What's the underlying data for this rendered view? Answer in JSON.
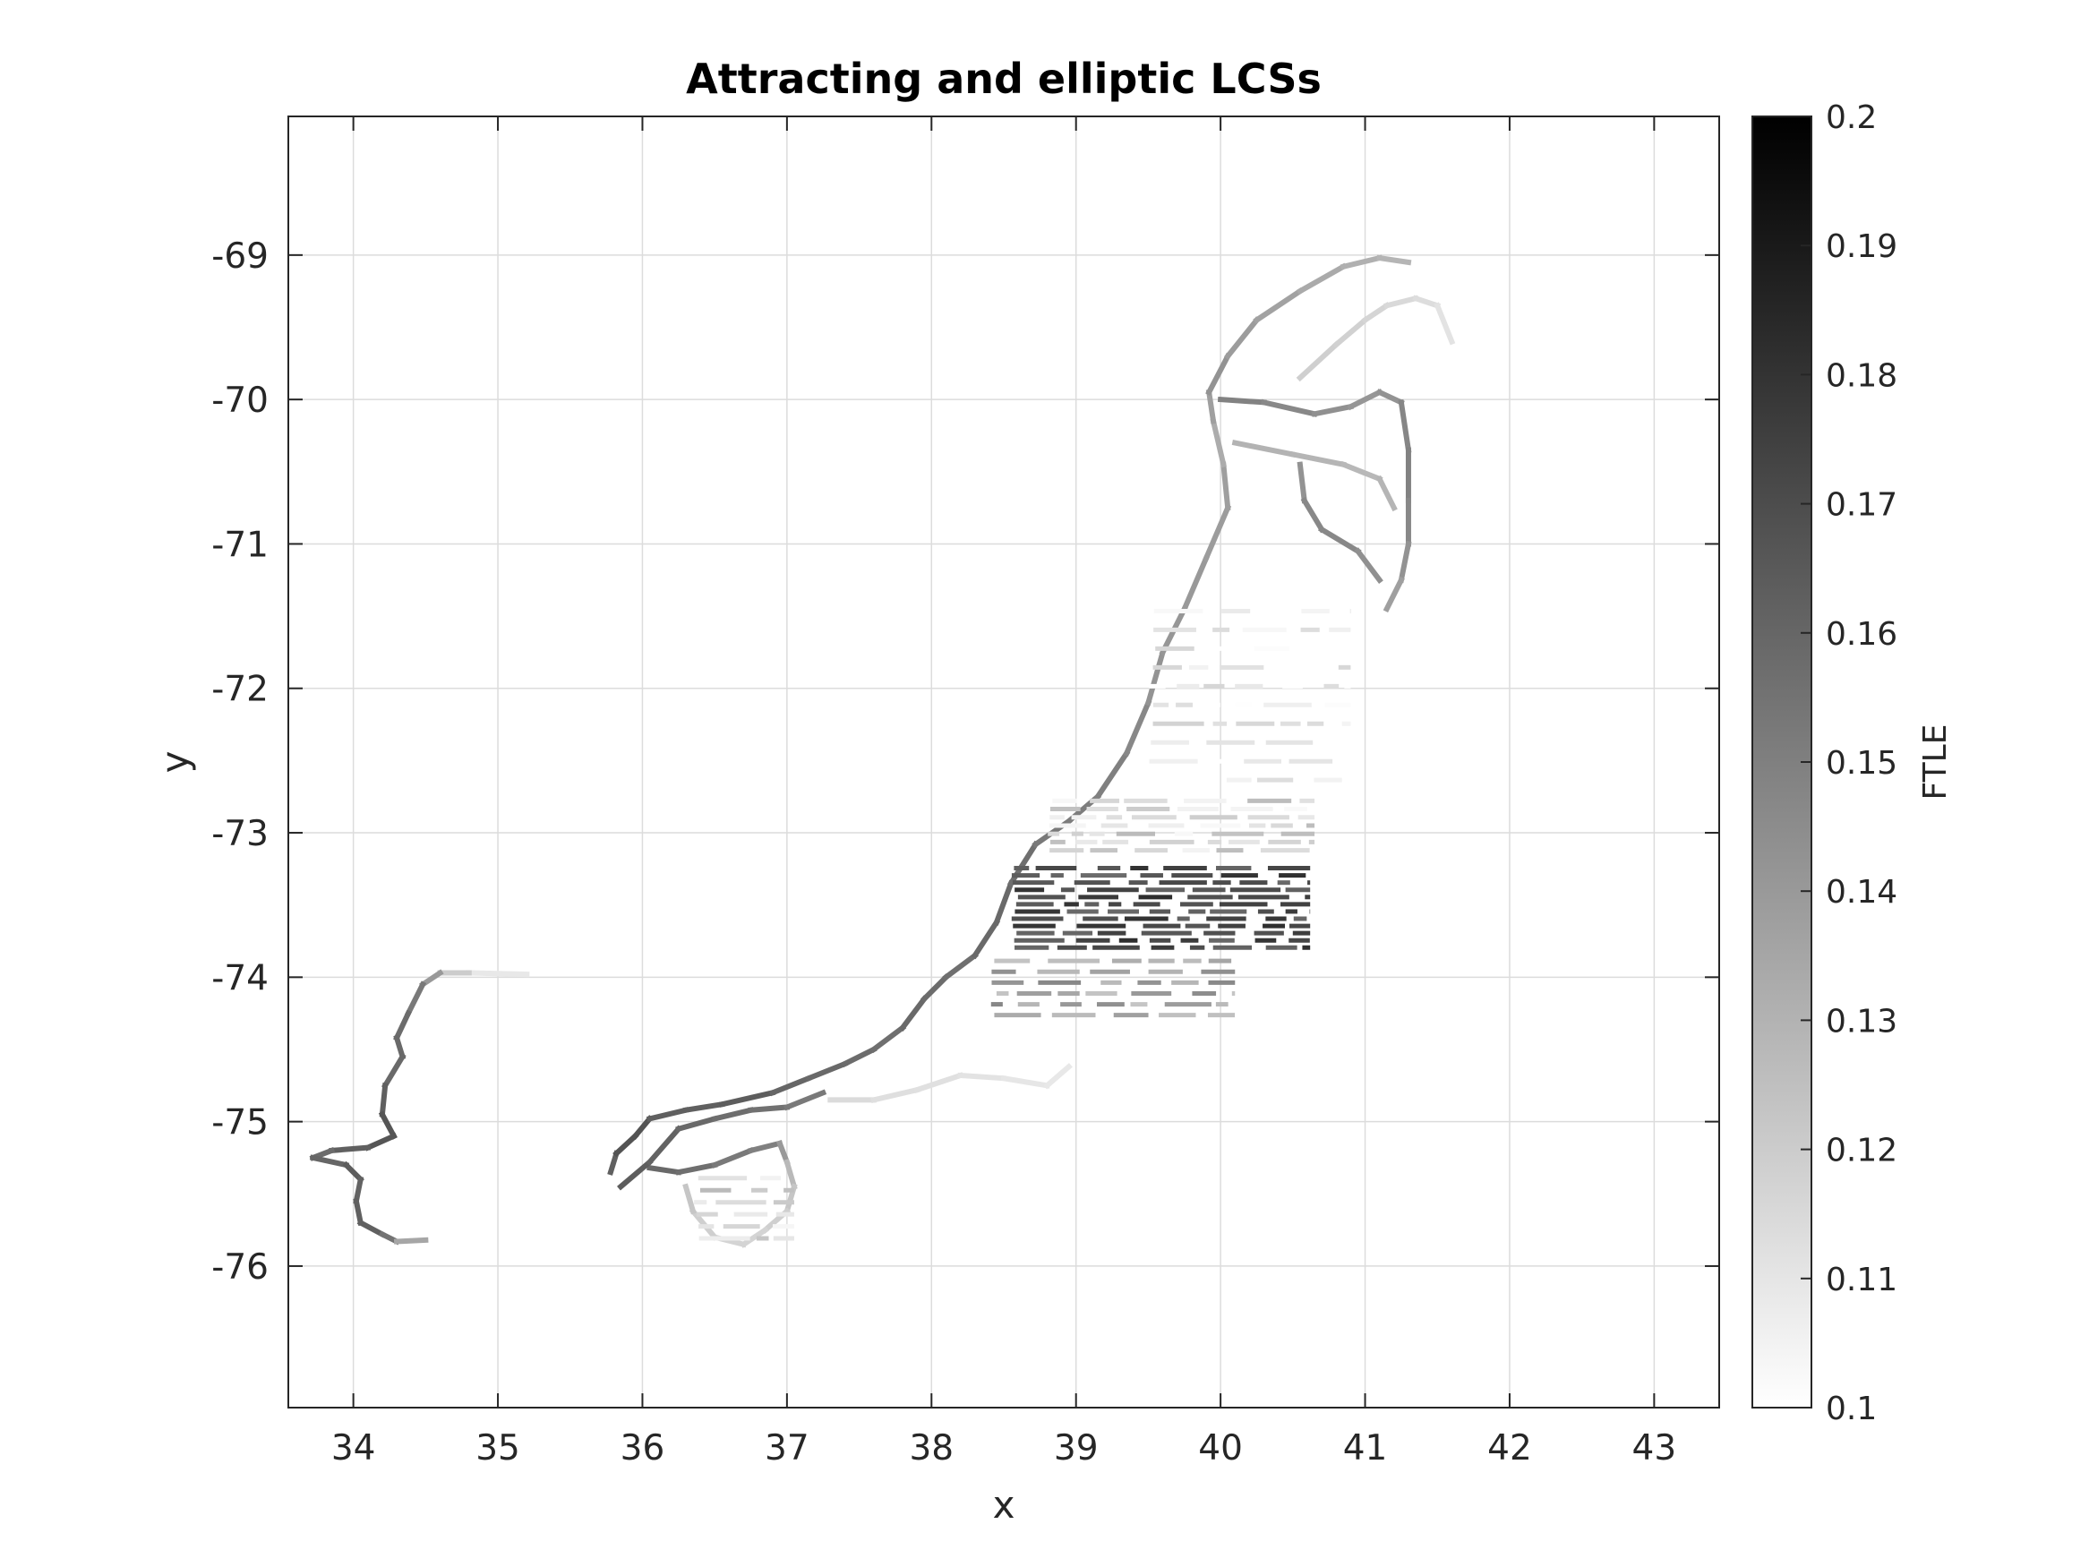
{
  "chart_data": {
    "type": "heatmap",
    "title": "Attracting and elliptic LCSs",
    "xlabel": "x",
    "ylabel": "y",
    "xlim": [
      33.55,
      43.45
    ],
    "ylim": [
      -76.98,
      -68.04
    ],
    "x_ticks": [
      34,
      35,
      36,
      37,
      38,
      39,
      40,
      41,
      42,
      43
    ],
    "y_ticks": [
      -69,
      -70,
      -71,
      -72,
      -73,
      -74,
      -75,
      -76
    ],
    "grid": true,
    "colormap": "gray (reversed: white = low, black = high)",
    "colorbar": {
      "label": "FTLE",
      "range": [
        0.1,
        0.2
      ],
      "ticks": [
        0.1,
        0.11,
        0.12,
        0.13,
        0.14,
        0.15,
        0.16,
        0.17,
        0.18,
        0.19,
        0.2
      ],
      "position": "right"
    },
    "series": [
      {
        "kind": "curve",
        "points": [
          [
            35.2,
            -73.98
          ],
          [
            34.8,
            -73.97
          ],
          [
            34.6,
            -73.97
          ],
          [
            34.48,
            -74.05
          ],
          [
            34.38,
            -74.25
          ],
          [
            34.3,
            -74.42
          ],
          [
            34.34,
            -74.55
          ],
          [
            34.22,
            -74.75
          ],
          [
            34.2,
            -74.95
          ],
          [
            34.28,
            -75.1
          ],
          [
            34.1,
            -75.18
          ],
          [
            33.85,
            -75.2
          ],
          [
            33.72,
            -75.25
          ],
          [
            33.95,
            -75.3
          ],
          [
            34.05,
            -75.4
          ],
          [
            34.02,
            -75.55
          ],
          [
            34.05,
            -75.7
          ],
          [
            34.2,
            -75.78
          ],
          [
            34.3,
            -75.83
          ],
          [
            34.5,
            -75.82
          ]
        ],
        "values": [
          0.108,
          0.11,
          0.13,
          0.15,
          0.155,
          0.16,
          0.158,
          0.16,
          0.165,
          0.168,
          0.165,
          0.16,
          0.155,
          0.165,
          0.162,
          0.16,
          0.165,
          0.16,
          0.15,
          0.12
        ]
      },
      {
        "kind": "curve",
        "points": [
          [
            35.78,
            -75.35
          ],
          [
            35.82,
            -75.22
          ],
          [
            35.95,
            -75.1
          ],
          [
            36.05,
            -74.98
          ],
          [
            36.3,
            -74.92
          ],
          [
            36.55,
            -74.88
          ],
          [
            36.9,
            -74.8
          ],
          [
            37.15,
            -74.7
          ],
          [
            37.4,
            -74.6
          ],
          [
            37.6,
            -74.5
          ],
          [
            37.8,
            -74.35
          ],
          [
            37.95,
            -74.15
          ],
          [
            38.1,
            -74.0
          ],
          [
            38.3,
            -73.85
          ],
          [
            38.45,
            -73.62
          ],
          [
            38.55,
            -73.35
          ],
          [
            38.72,
            -73.08
          ],
          [
            38.95,
            -72.92
          ],
          [
            39.15,
            -72.75
          ],
          [
            39.35,
            -72.45
          ],
          [
            39.5,
            -72.1
          ],
          [
            39.6,
            -71.75
          ],
          [
            39.75,
            -71.45
          ],
          [
            39.9,
            -71.1
          ],
          [
            40.05,
            -70.75
          ],
          [
            40.02,
            -70.45
          ],
          [
            39.95,
            -70.15
          ],
          [
            39.92,
            -69.95
          ],
          [
            40.05,
            -69.7
          ],
          [
            40.25,
            -69.45
          ],
          [
            40.55,
            -69.25
          ],
          [
            40.85,
            -69.08
          ],
          [
            41.1,
            -69.02
          ],
          [
            41.3,
            -69.05
          ]
        ],
        "values": [
          0.16,
          0.165,
          0.17,
          0.165,
          0.16,
          0.165,
          0.162,
          0.158,
          0.16,
          0.155,
          0.158,
          0.16,
          0.155,
          0.158,
          0.16,
          0.158,
          0.155,
          0.15,
          0.152,
          0.148,
          0.145,
          0.14,
          0.142,
          0.138,
          0.14,
          0.135,
          0.13,
          0.145,
          0.14,
          0.138,
          0.135,
          0.132,
          0.13,
          0.128
        ]
      },
      {
        "kind": "curve",
        "points": [
          [
            36.05,
            -75.32
          ],
          [
            36.25,
            -75.35
          ],
          [
            36.5,
            -75.3
          ],
          [
            36.75,
            -75.2
          ],
          [
            36.95,
            -75.15
          ],
          [
            37.0,
            -75.28
          ],
          [
            37.05,
            -75.45
          ],
          [
            37.0,
            -75.62
          ],
          [
            36.85,
            -75.75
          ],
          [
            36.7,
            -75.85
          ],
          [
            36.5,
            -75.8
          ],
          [
            36.35,
            -75.62
          ],
          [
            36.3,
            -75.45
          ]
        ],
        "values": [
          0.16,
          0.158,
          0.155,
          0.15,
          0.15,
          0.13,
          0.125,
          0.12,
          0.118,
          0.116,
          0.118,
          0.12,
          0.125
        ]
      },
      {
        "kind": "curve",
        "points": [
          [
            35.85,
            -75.45
          ],
          [
            36.05,
            -75.28
          ],
          [
            36.25,
            -75.05
          ],
          [
            36.5,
            -74.98
          ],
          [
            36.75,
            -74.92
          ],
          [
            37.0,
            -74.9
          ],
          [
            37.25,
            -74.8
          ]
        ],
        "values": [
          0.165,
          0.162,
          0.16,
          0.158,
          0.156,
          0.155,
          0.15
        ]
      },
      {
        "kind": "curve",
        "points": [
          [
            37.3,
            -74.85
          ],
          [
            37.6,
            -74.85
          ],
          [
            37.9,
            -74.78
          ],
          [
            38.2,
            -74.68
          ],
          [
            38.5,
            -74.7
          ],
          [
            38.8,
            -74.75
          ],
          [
            38.95,
            -74.62
          ]
        ],
        "values": [
          0.115,
          0.113,
          0.112,
          0.112,
          0.11,
          0.11,
          0.108
        ]
      },
      {
        "kind": "curve",
        "points": [
          [
            40.0,
            -70.0
          ],
          [
            40.3,
            -70.02
          ],
          [
            40.65,
            -70.1
          ],
          [
            40.9,
            -70.05
          ],
          [
            41.1,
            -69.95
          ],
          [
            41.25,
            -70.02
          ],
          [
            41.3,
            -70.35
          ],
          [
            41.3,
            -70.7
          ],
          [
            41.3,
            -71.0
          ],
          [
            41.25,
            -71.25
          ],
          [
            41.15,
            -71.45
          ]
        ],
        "values": [
          0.15,
          0.148,
          0.145,
          0.142,
          0.14,
          0.145,
          0.15,
          0.148,
          0.145,
          0.14,
          0.135
        ]
      },
      {
        "kind": "curve",
        "points": [
          [
            40.1,
            -70.3
          ],
          [
            40.5,
            -70.38
          ],
          [
            40.85,
            -70.45
          ],
          [
            41.1,
            -70.55
          ],
          [
            41.2,
            -70.75
          ]
        ],
        "values": [
          0.13,
          0.13,
          0.128,
          0.128,
          0.13
        ]
      },
      {
        "kind": "curve",
        "points": [
          [
            40.55,
            -70.45
          ],
          [
            40.58,
            -70.7
          ],
          [
            40.7,
            -70.9
          ],
          [
            40.95,
            -71.05
          ],
          [
            41.1,
            -71.25
          ]
        ],
        "values": [
          0.14,
          0.145,
          0.148,
          0.145,
          0.142
        ]
      },
      {
        "kind": "curve",
        "points": [
          [
            40.55,
            -69.85
          ],
          [
            40.8,
            -69.62
          ],
          [
            41.0,
            -69.45
          ],
          [
            41.15,
            -69.35
          ],
          [
            41.35,
            -69.3
          ],
          [
            41.5,
            -69.35
          ],
          [
            41.6,
            -69.6
          ]
        ],
        "values": [
          0.12,
          0.118,
          0.118,
          0.115,
          0.115,
          0.112,
          0.11
        ]
      },
      {
        "kind": "band",
        "x_range": [
          38.55,
          40.62
        ],
        "y_range": [
          -73.82,
          -73.22
        ],
        "rows": 12,
        "value": 0.17
      },
      {
        "kind": "band",
        "x_range": [
          38.8,
          40.65
        ],
        "y_range": [
          -73.15,
          -72.75
        ],
        "rows": 7,
        "value": 0.115
      },
      {
        "kind": "band",
        "x_range": [
          38.4,
          40.1
        ],
        "y_range": [
          -74.3,
          -73.85
        ],
        "rows": 6,
        "value": 0.135
      },
      {
        "kind": "band",
        "x_range": [
          39.5,
          40.9
        ],
        "y_range": [
          -72.7,
          -71.4
        ],
        "rows": 10,
        "value": 0.105
      },
      {
        "kind": "band",
        "x_range": [
          36.35,
          37.05
        ],
        "y_range": [
          -75.85,
          -75.35
        ],
        "rows": 6,
        "value": 0.115
      }
    ]
  }
}
